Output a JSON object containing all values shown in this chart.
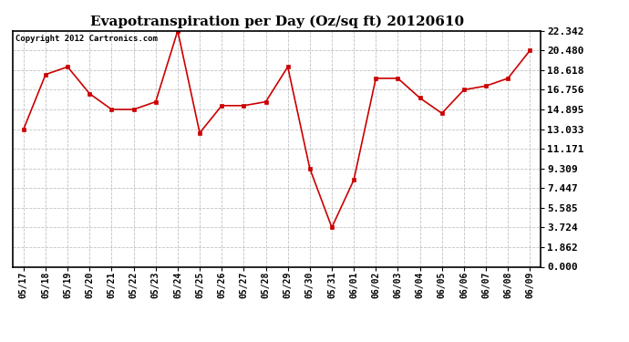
{
  "title": "Evapotranspiration per Day (Oz/sq ft) 20120610",
  "copyright_text": "Copyright 2012 Cartronics.com",
  "x_labels": [
    "05/17",
    "05/18",
    "05/19",
    "05/20",
    "05/21",
    "05/22",
    "05/23",
    "05/24",
    "05/25",
    "05/26",
    "05/27",
    "05/28",
    "05/29",
    "05/30",
    "05/31",
    "06/01",
    "06/02",
    "06/03",
    "06/04",
    "06/05",
    "06/06",
    "06/07",
    "06/08",
    "06/09"
  ],
  "y_values": [
    13.033,
    18.204,
    18.928,
    16.384,
    14.895,
    14.895,
    15.619,
    22.342,
    12.671,
    15.257,
    15.257,
    15.619,
    18.928,
    9.309,
    3.724,
    8.223,
    17.842,
    17.842,
    15.981,
    14.533,
    16.756,
    17.118,
    17.842,
    20.48
  ],
  "line_color": "#cc0000",
  "marker_color": "#cc0000",
  "bg_color": "#ffffff",
  "plot_bg_color": "#ffffff",
  "grid_color": "#bbbbbb",
  "yticks": [
    0.0,
    1.862,
    3.724,
    5.585,
    7.447,
    9.309,
    11.171,
    13.033,
    14.895,
    16.756,
    18.618,
    20.48,
    22.342
  ],
  "ylim": [
    0.0,
    22.342
  ],
  "title_fontsize": 11,
  "copyright_fontsize": 6.5,
  "tick_fontsize": 7,
  "ytick_fontsize": 8
}
